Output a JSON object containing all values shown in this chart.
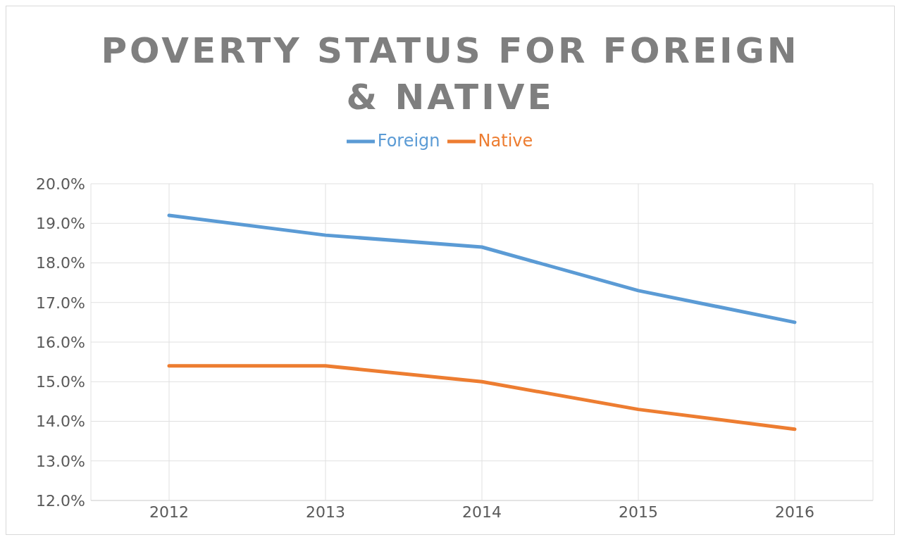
{
  "chart_data": {
    "type": "line",
    "title": "POVERTY STATUS FOR FOREIGN & NATIVE",
    "categories": [
      "2012",
      "2013",
      "2014",
      "2015",
      "2016"
    ],
    "series": [
      {
        "name": "Foreign",
        "color": "#5b9bd5",
        "values": [
          19.2,
          18.7,
          18.4,
          17.3,
          16.5
        ]
      },
      {
        "name": "Native",
        "color": "#ed7d31",
        "values": [
          15.4,
          15.4,
          15.0,
          14.3,
          13.8
        ]
      }
    ],
    "ylim": [
      12,
      20
    ],
    "yticks": [
      {
        "value": 12,
        "label": "12.0%"
      },
      {
        "value": 13,
        "label": "13.0%"
      },
      {
        "value": 14,
        "label": "14.0%"
      },
      {
        "value": 15,
        "label": "15.0%"
      },
      {
        "value": 16,
        "label": "16.0%"
      },
      {
        "value": 17,
        "label": "17.0%"
      },
      {
        "value": 18,
        "label": "18.0%"
      },
      {
        "value": 19,
        "label": "19.0%"
      },
      {
        "value": 20,
        "label": "20.0%"
      }
    ],
    "grid": true,
    "legend": "top",
    "marker": "none",
    "line_style": "solid"
  }
}
